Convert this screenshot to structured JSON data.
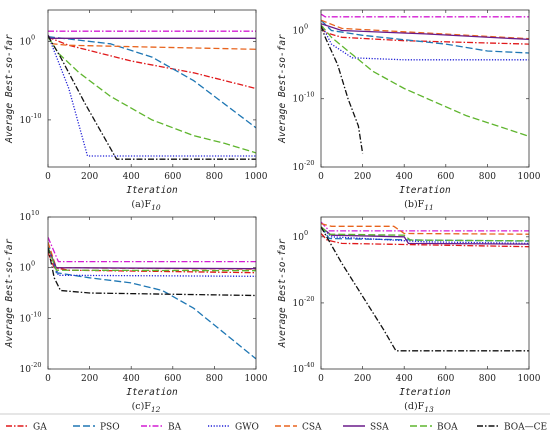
{
  "legend": {
    "placement": "bottom",
    "entries": [
      {
        "label": "GA",
        "color": "#e0191b",
        "dash": "6,2,1.5,2"
      },
      {
        "label": "PSO",
        "color": "#1f77b4",
        "dash": "7,3"
      },
      {
        "label": "BA",
        "color": "#d41cd4",
        "dash": "6,2,1.5,2"
      },
      {
        "label": "GWO",
        "color": "#1f1fd6",
        "dash": "1.2,1.6"
      },
      {
        "label": "CSA",
        "color": "#e8641e",
        "dash": "6,3"
      },
      {
        "label": "SSA",
        "color": "#6a1b8a",
        "dash": ""
      },
      {
        "label": "BOA",
        "color": "#5fb52e",
        "dash": "7,3"
      },
      {
        "label": "BOA—CE",
        "color": "#111111",
        "dash": "6,2,1.5,2"
      }
    ]
  },
  "chart_data": [
    {
      "type": "line",
      "caption": "(a)F",
      "caption_sub": "10",
      "xlabel": "Iteration",
      "ylabel": "Average Best-so-far",
      "xlim": [
        0,
        1000
      ],
      "ylim_log10": [
        -16,
        4
      ],
      "yscale": "log",
      "xticks": [
        0,
        200,
        400,
        600,
        800,
        1000
      ],
      "yticks": [
        {
          "exp": 0,
          "label": "10",
          "sup": "0"
        },
        {
          "exp": -10,
          "label": "10",
          "sup": "-10"
        }
      ],
      "series": [
        {
          "legend": 0,
          "points": [
            [
              0,
              0.6
            ],
            [
              5,
              0.5
            ],
            [
              100,
              -0.5
            ],
            [
              400,
              -2.5
            ],
            [
              700,
              -4
            ],
            [
              1000,
              -6
            ]
          ]
        },
        {
          "legend": 1,
          "points": [
            [
              0,
              0.6
            ],
            [
              100,
              0.3
            ],
            [
              300,
              -0.3
            ],
            [
              500,
              -2
            ],
            [
              700,
              -5
            ],
            [
              850,
              -8
            ],
            [
              1000,
              -11
            ]
          ]
        },
        {
          "legend": 2,
          "points": [
            [
              0,
              1.3
            ],
            [
              1000,
              1.3
            ]
          ]
        },
        {
          "legend": 3,
          "points": [
            [
              0,
              0.8
            ],
            [
              100,
              -6
            ],
            [
              190,
              -14.6
            ],
            [
              1000,
              -14.6
            ]
          ]
        },
        {
          "legend": 4,
          "points": [
            [
              0,
              0.8
            ],
            [
              20,
              -0.3
            ],
            [
              100,
              -0.5
            ],
            [
              1000,
              -1
            ]
          ]
        },
        {
          "legend": 5,
          "points": [
            [
              0,
              0.8
            ],
            [
              10,
              0.4
            ],
            [
              1000,
              0.4
            ]
          ]
        },
        {
          "legend": 6,
          "points": [
            [
              0,
              0.6
            ],
            [
              50,
              -1.5
            ],
            [
              150,
              -4
            ],
            [
              300,
              -7
            ],
            [
              500,
              -10
            ],
            [
              700,
              -12
            ],
            [
              850,
              -13
            ],
            [
              1000,
              -14.2
            ]
          ]
        },
        {
          "legend": 7,
          "points": [
            [
              0,
              0.7
            ],
            [
              60,
              -2
            ],
            [
              180,
              -8
            ],
            [
              330,
              -15
            ],
            [
              1000,
              -15
            ]
          ]
        }
      ]
    },
    {
      "type": "line",
      "caption": "(b)F",
      "caption_sub": "11",
      "xlabel": "Iteration",
      "ylabel": "Average Best-so-far",
      "xlim": [
        0,
        1000
      ],
      "ylim_log10": [
        -20,
        3
      ],
      "yscale": "log",
      "xticks": [
        0,
        200,
        400,
        600,
        800,
        1000
      ],
      "yticks": [
        {
          "exp": 0,
          "label": "10",
          "sup": "0"
        },
        {
          "exp": -10,
          "label": "10",
          "sup": "-10"
        },
        {
          "exp": -20,
          "label": "10",
          "sup": "-20"
        }
      ],
      "series": [
        {
          "legend": 0,
          "points": [
            [
              0,
              0.5
            ],
            [
              20,
              -0.3
            ],
            [
              100,
              -1
            ],
            [
              400,
              -1.5
            ],
            [
              1000,
              -2
            ]
          ]
        },
        {
          "legend": 1,
          "points": [
            [
              0,
              1.5
            ],
            [
              50,
              0
            ],
            [
              200,
              -0.7
            ],
            [
              600,
              -2
            ],
            [
              800,
              -3
            ],
            [
              1000,
              -3.3
            ]
          ]
        },
        {
          "legend": 2,
          "points": [
            [
              0,
              2.4
            ],
            [
              20,
              2
            ],
            [
              1000,
              2
            ]
          ]
        },
        {
          "legend": 3,
          "points": [
            [
              0,
              1
            ],
            [
              50,
              -2
            ],
            [
              150,
              -4
            ],
            [
              400,
              -4.3
            ],
            [
              1000,
              -4.3
            ]
          ]
        },
        {
          "legend": 4,
          "points": [
            [
              0,
              1.5
            ],
            [
              100,
              0.3
            ],
            [
              400,
              -0.2
            ],
            [
              1000,
              -1.2
            ]
          ]
        },
        {
          "legend": 5,
          "points": [
            [
              0,
              1
            ],
            [
              100,
              0
            ],
            [
              500,
              -0.5
            ],
            [
              1000,
              -1.3
            ]
          ]
        },
        {
          "legend": 6,
          "points": [
            [
              0,
              0.8
            ],
            [
              50,
              -1
            ],
            [
              150,
              -3.5
            ],
            [
              250,
              -6
            ],
            [
              400,
              -8.5
            ],
            [
              550,
              -10.5
            ],
            [
              700,
              -12.5
            ],
            [
              850,
              -14
            ],
            [
              1000,
              -15.5
            ]
          ]
        },
        {
          "legend": 7,
          "points": [
            [
              0,
              0.7
            ],
            [
              20,
              -1
            ],
            [
              80,
              -5
            ],
            [
              130,
              -10
            ],
            [
              180,
              -14
            ],
            [
              200,
              -18
            ]
          ]
        }
      ]
    },
    {
      "type": "line",
      "caption": "(c)F",
      "caption_sub": "12",
      "xlabel": "Iteration",
      "ylabel": "Average Best-so-far",
      "xlim": [
        0,
        1000
      ],
      "ylim_log10": [
        -20,
        10
      ],
      "yscale": "log",
      "xticks": [
        0,
        200,
        400,
        600,
        800,
        1000
      ],
      "yticks": [
        {
          "exp": 10,
          "label": "10",
          "sup": "10"
        },
        {
          "exp": 0,
          "label": "10",
          "sup": "0"
        },
        {
          "exp": -10,
          "label": "10",
          "sup": "-10"
        },
        {
          "exp": -20,
          "label": "10",
          "sup": "-20"
        }
      ],
      "series": [
        {
          "legend": 0,
          "points": [
            [
              0,
              3
            ],
            [
              30,
              0
            ],
            [
              100,
              -0.5
            ],
            [
              1000,
              -1
            ]
          ]
        },
        {
          "legend": 1,
          "points": [
            [
              0,
              5
            ],
            [
              40,
              -1
            ],
            [
              200,
              -2
            ],
            [
              400,
              -3
            ],
            [
              550,
              -4.5
            ],
            [
              700,
              -8
            ],
            [
              850,
              -13
            ],
            [
              1000,
              -18
            ]
          ]
        },
        {
          "legend": 2,
          "points": [
            [
              0,
              6
            ],
            [
              50,
              1.2
            ],
            [
              1000,
              1.2
            ]
          ]
        },
        {
          "legend": 3,
          "points": [
            [
              0,
              4
            ],
            [
              50,
              -1.5
            ],
            [
              1000,
              -1.7
            ]
          ]
        },
        {
          "legend": 4,
          "points": [
            [
              0,
              5
            ],
            [
              40,
              0
            ],
            [
              1000,
              -0.3
            ]
          ]
        },
        {
          "legend": 5,
          "points": [
            [
              0,
              4
            ],
            [
              40,
              0
            ],
            [
              1000,
              -0.2
            ]
          ]
        },
        {
          "legend": 6,
          "points": [
            [
              0,
              4
            ],
            [
              40,
              -0.5
            ],
            [
              1000,
              -0.6
            ]
          ]
        },
        {
          "legend": 7,
          "points": [
            [
              0,
              4
            ],
            [
              30,
              -2
            ],
            [
              60,
              -4.5
            ],
            [
              200,
              -5
            ],
            [
              1000,
              -5.5
            ]
          ]
        }
      ]
    },
    {
      "type": "line",
      "caption": "(d)F",
      "caption_sub": "13",
      "xlabel": "Iteration",
      "ylabel": "Average Best-so-far",
      "xlim": [
        0,
        1000
      ],
      "ylim_log10": [
        -40,
        6
      ],
      "yscale": "log",
      "xticks": [
        0,
        200,
        400,
        600,
        800,
        1000
      ],
      "yticks": [
        {
          "exp": 0,
          "label": "10",
          "sup": "0"
        },
        {
          "exp": -20,
          "label": "10",
          "sup": "-20"
        },
        {
          "exp": -40,
          "label": "10",
          "sup": "-40"
        }
      ],
      "series": [
        {
          "legend": 0,
          "points": [
            [
              0,
              1
            ],
            [
              30,
              -1
            ],
            [
              100,
              -2
            ],
            [
              1000,
              -3
            ]
          ]
        },
        {
          "legend": 1,
          "points": [
            [
              0,
              3
            ],
            [
              40,
              -0.5
            ],
            [
              500,
              -1
            ],
            [
              1000,
              -1.3
            ]
          ]
        },
        {
          "legend": 2,
          "points": [
            [
              0,
              4.5
            ],
            [
              40,
              1.8
            ],
            [
              1000,
              1.8
            ]
          ]
        },
        {
          "legend": 3,
          "points": [
            [
              0,
              3
            ],
            [
              50,
              0
            ],
            [
              500,
              -1.5
            ],
            [
              1000,
              -2
            ]
          ]
        },
        {
          "legend": 4,
          "points": [
            [
              0,
              4
            ],
            [
              50,
              3.2
            ],
            [
              350,
              3.2
            ],
            [
              400,
              1
            ],
            [
              1000,
              0.8
            ]
          ]
        },
        {
          "legend": 5,
          "points": [
            [
              0,
              3
            ],
            [
              50,
              0.5
            ],
            [
              400,
              0
            ],
            [
              420,
              -2
            ],
            [
              1000,
              -2.2
            ]
          ]
        },
        {
          "legend": 6,
          "points": [
            [
              0,
              3
            ],
            [
              40,
              0.8
            ],
            [
              400,
              0.5
            ],
            [
              430,
              -1
            ],
            [
              1000,
              -1.2
            ]
          ]
        },
        {
          "legend": 7,
          "points": [
            [
              0,
              3
            ],
            [
              100,
              -8
            ],
            [
              200,
              -18
            ],
            [
              300,
              -28
            ],
            [
              360,
              -34.5
            ],
            [
              1000,
              -34.5
            ]
          ]
        }
      ]
    }
  ]
}
